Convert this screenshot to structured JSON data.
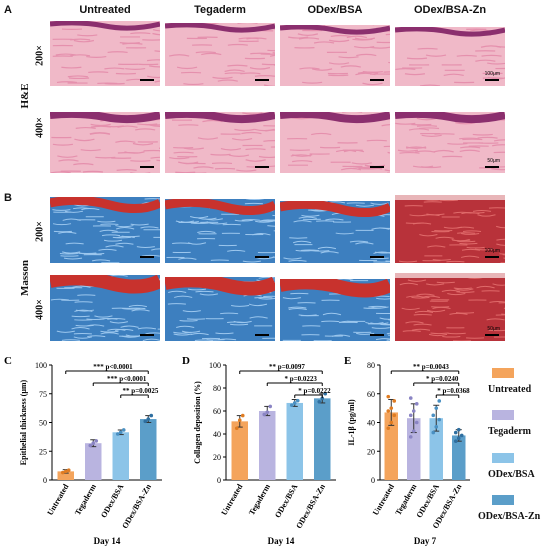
{
  "panels": {
    "A": {
      "letter": "A",
      "stain_label": "H&E",
      "columns": [
        "Untreated",
        "Tegaderm",
        "ODex/BSA",
        "ODex/BSA-Zn"
      ],
      "rows": [
        "200×",
        "400×"
      ],
      "scale_labels": [
        "100μm",
        "50μm"
      ],
      "colors": {
        "base": "#f0b9c8",
        "epidermis": "#8b2f6e",
        "fiber": "#e590ad"
      }
    },
    "B": {
      "letter": "B",
      "stain_label": "Masson",
      "columns": [
        "Untreated",
        "Tegaderm",
        "ODex/BSA",
        "ODex/BSA-Zn"
      ],
      "rows": [
        "200×",
        "400×"
      ],
      "scale_labels": [
        "100μm",
        "50μm"
      ],
      "colors": {
        "collagen": "#3d7fbf",
        "muscle": "#c8322d",
        "red_tissue": "#b8323a"
      }
    }
  },
  "chart_data": [
    {
      "panel": "C",
      "type": "bar",
      "categories": [
        "Untreated",
        "Tegaderm",
        "ODex/BSA",
        "ODex/BSA-Zn"
      ],
      "values": [
        7.5,
        32,
        41.5,
        53
      ],
      "errors": [
        1.5,
        3,
        2,
        3
      ],
      "points": [
        [
          6.5,
          7.5,
          8.5
        ],
        [
          30,
          32,
          34
        ],
        [
          40,
          41.5,
          43.5
        ],
        [
          51,
          53,
          56
        ]
      ],
      "ylabel": "Epithelial thickness (μm)",
      "xlabel": "Day 14",
      "ylim": [
        0,
        100
      ],
      "yticks": [
        0,
        25,
        50,
        75,
        100
      ],
      "annotations": [
        {
          "from": 0,
          "to": 3,
          "text": "*** p<0.0001"
        },
        {
          "from": 1,
          "to": 3,
          "text": "*** p<0.0001"
        },
        {
          "from": 2,
          "to": 3,
          "text": "** p=0.0025"
        }
      ]
    },
    {
      "panel": "D",
      "type": "bar",
      "categories": [
        "Untreated",
        "Tegaderm",
        "ODex/BSA",
        "ODex/BSA-Zn"
      ],
      "values": [
        51,
        60,
        67,
        71
      ],
      "errors": [
        5,
        4,
        3,
        4
      ],
      "points": [
        [
          45,
          52,
          56
        ],
        [
          57,
          59,
          64
        ],
        [
          65,
          67,
          69
        ],
        [
          68,
          71,
          75
        ]
      ],
      "ylabel": "Collagen deposition (%)",
      "xlabel": "Day 14",
      "ylim": [
        0,
        100
      ],
      "yticks": [
        0,
        20,
        40,
        60,
        80,
        100
      ],
      "annotations": [
        {
          "from": 0,
          "to": 3,
          "text": "** p=0.0097"
        },
        {
          "from": 1,
          "to": 3,
          "text": "* p=0.0223"
        },
        {
          "from": 2,
          "to": 3,
          "text": "* p=0.0222"
        }
      ]
    },
    {
      "panel": "E",
      "type": "bar",
      "categories": [
        "Untreated",
        "Tegaderm",
        "ODex/BSA",
        "ODex/BSA-Zn"
      ],
      "values": [
        47,
        43,
        43,
        31
      ],
      "errors": [
        9,
        10,
        9,
        4
      ],
      "points": [
        [
          36,
          40,
          45,
          48,
          50,
          55,
          58
        ],
        [
          30,
          34,
          40,
          45,
          48,
          53,
          57
        ],
        [
          33,
          37,
          42,
          45,
          50,
          55
        ],
        [
          27,
          29,
          31,
          33,
          35
        ]
      ],
      "ylabel": "IL-1β (pg/ml)",
      "xlabel": "Day 7",
      "ylim": [
        0,
        80
      ],
      "yticks": [
        0,
        20,
        40,
        60,
        80
      ],
      "annotations": [
        {
          "from": 0,
          "to": 3,
          "text": "** p=0.0043"
        },
        {
          "from": 1,
          "to": 3,
          "text": "* p=0.0240"
        },
        {
          "from": 2,
          "to": 3,
          "text": "* p=0.0368"
        }
      ]
    }
  ],
  "legend": {
    "items": [
      {
        "label": "Untreated",
        "color": "#f4a45c"
      },
      {
        "label": "Tegaderm",
        "color": "#b9b4e0"
      },
      {
        "label": "ODex/BSA",
        "color": "#8cc4e8"
      },
      {
        "label": "ODex/BSA-Zn",
        "color": "#5b9ec9"
      }
    ]
  },
  "bar_colors": [
    "#f4a45c",
    "#b9b4e0",
    "#8cc4e8",
    "#5b9ec9"
  ],
  "point_colors": [
    "#e07c22",
    "#8a84c4",
    "#4a90c2",
    "#2f6fa0"
  ]
}
